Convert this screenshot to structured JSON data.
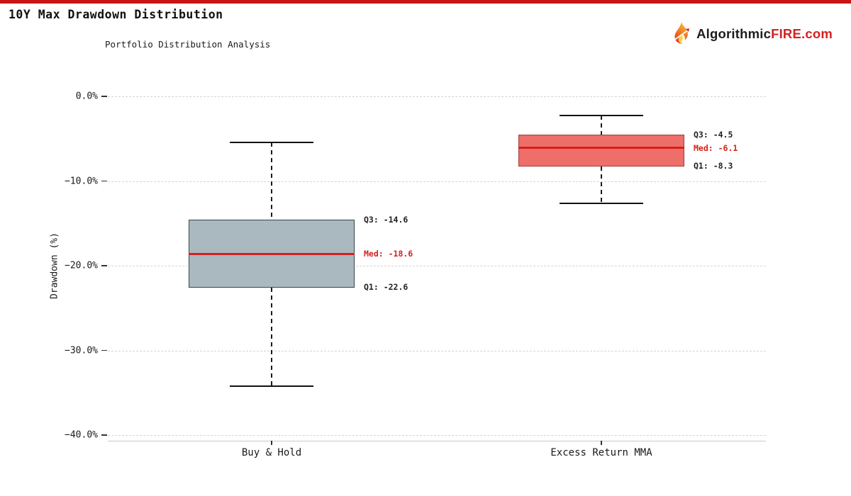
{
  "page": {
    "title": "10Y Max Drawdown Distribution",
    "top_bar_color": "#c81414"
  },
  "logo": {
    "brand_prefix": "Algorithmic",
    "brand_suffix": "FIRE.com",
    "prefix_color": "#1c1c1c",
    "suffix_color": "#d32222",
    "icon": "flame-icon"
  },
  "chart_data": {
    "type": "boxplot",
    "title": "Portfolio Distribution Analysis",
    "ylabel": "Drawdown (%)",
    "ylim": [
      -40,
      0
    ],
    "yticks": [
      0,
      -10,
      -20,
      -30,
      -40
    ],
    "ytick_labels": [
      "0.0%",
      "−10.0%",
      "−20.0%",
      "−30.0%",
      "−40.0%"
    ],
    "grid": "dashed horizontal",
    "categories": [
      "Buy & Hold",
      "Excess Return MMA"
    ],
    "series": [
      {
        "name": "Buy & Hold",
        "whisker_high": -5.4,
        "q3": -14.6,
        "median": -18.6,
        "q1": -22.6,
        "whisker_low": -34.2,
        "box_fill": "#aab8bf",
        "box_border": "#37474f",
        "median_color": "#d62020",
        "labels": {
          "q3": "Q3: -14.6",
          "med": "Med: -18.6",
          "q1": "Q1: -22.6"
        }
      },
      {
        "name": "Excess Return MMA",
        "whisker_high": -2.3,
        "q3": -4.5,
        "median": -6.1,
        "q1": -8.3,
        "whisker_low": -12.6,
        "box_fill": "#ee6e6a",
        "box_border": "#a23b3b",
        "median_color": "#d42015",
        "labels": {
          "q3": "Q3: -4.5",
          "med": "Med: -6.1",
          "q1": "Q1: -8.3"
        }
      }
    ]
  }
}
